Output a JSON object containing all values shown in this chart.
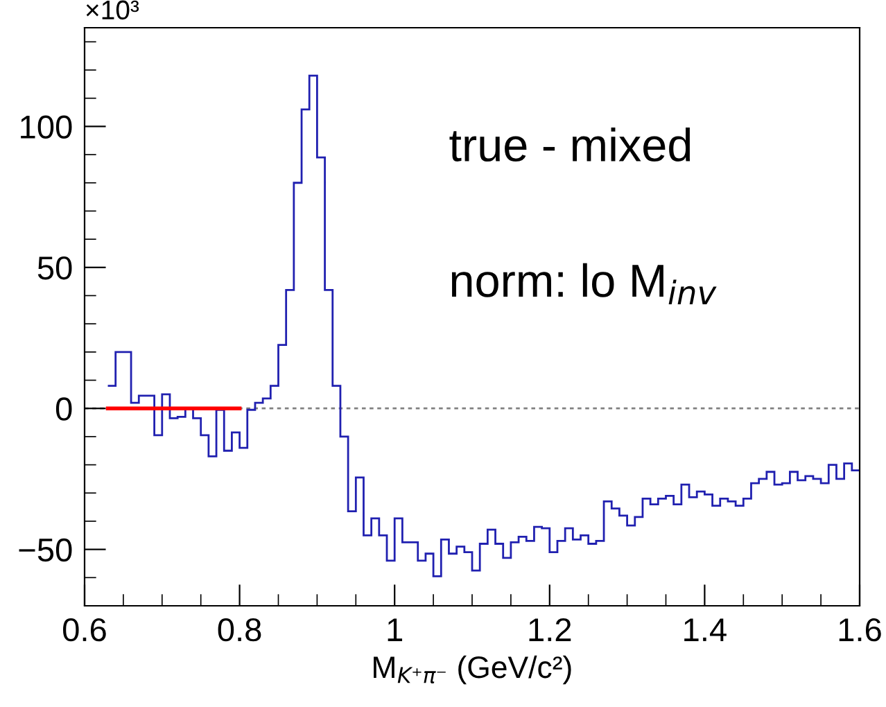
{
  "chart_data": {
    "type": "histogram",
    "xlabel": "M$_{K⁺π⁻}$ (GeV/c²)",
    "annotations": [
      "×10³",
      "true - mixed",
      "norm: lo M$_{inv}$"
    ],
    "xlim": [
      0.6,
      1.6
    ],
    "xticks": [
      0.6,
      0.8,
      {
        "value": 1.0,
        "label": "1"
      },
      1.2,
      1.4,
      1.6
    ],
    "ylim": [
      -70,
      135
    ],
    "yticks": [
      {
        "value": -50,
        "label": "−50"
      },
      0,
      50,
      100
    ],
    "ref_lines": [
      {
        "axis": "y",
        "value": 0,
        "color": "#808080",
        "line_style": "dotted"
      }
    ],
    "series": [
      {
        "color": "#2020b0",
        "bins": [
          0.63,
          0.64,
          0.65,
          0.66,
          0.67,
          0.68,
          0.69,
          0.7,
          0.71,
          0.72,
          0.73,
          0.74,
          0.75,
          0.76,
          0.77,
          0.78,
          0.79,
          0.8,
          0.81,
          0.82,
          0.83,
          0.84,
          0.85,
          0.86,
          0.87,
          0.88,
          0.89,
          0.9,
          0.91,
          0.92,
          0.93,
          0.94,
          0.95,
          0.96,
          0.97,
          0.98,
          0.99,
          1.0,
          1.01,
          1.02,
          1.03,
          1.04,
          1.05,
          1.06,
          1.07,
          1.08,
          1.09,
          1.1,
          1.11,
          1.12,
          1.13,
          1.14,
          1.15,
          1.16,
          1.17,
          1.18,
          1.19,
          1.2,
          1.21,
          1.22,
          1.23,
          1.24,
          1.25,
          1.26,
          1.27,
          1.28,
          1.29,
          1.3,
          1.31,
          1.32,
          1.33,
          1.34,
          1.35,
          1.36,
          1.37,
          1.38,
          1.39,
          1.4,
          1.41,
          1.42,
          1.43,
          1.44,
          1.45,
          1.46,
          1.47,
          1.48,
          1.49,
          1.5,
          1.51,
          1.52,
          1.53,
          1.54,
          1.55,
          1.56,
          1.57,
          1.58,
          1.59,
          1.6
        ],
        "values": [
          8,
          20,
          20,
          2,
          4.5,
          4.5,
          -9.5,
          5,
          -3.5,
          -3,
          0,
          -3.5,
          -9.5,
          -17,
          -0.5,
          -15,
          -8.5,
          -14,
          -0.5,
          2,
          3.5,
          8,
          22.5,
          42,
          80,
          106,
          118,
          89,
          42,
          8,
          -10,
          -36.5,
          -24.5,
          -45,
          -39,
          -45,
          -54,
          -39,
          -47.5,
          -47.5,
          -54,
          -51.5,
          -59.5,
          -46.5,
          -51.5,
          -49,
          -51,
          -57.5,
          -48,
          -43,
          -48,
          -53,
          -47.5,
          -45.5,
          -47,
          -42,
          -42.5,
          -51,
          -47,
          -42.5,
          -46.5,
          -45,
          -48,
          -47,
          -33,
          -35.5,
          -38,
          -41.5,
          -38.5,
          -32,
          -34,
          -32,
          -31,
          -34,
          -27,
          -31.5,
          -29.5,
          -30.5,
          -34.5,
          -32,
          -33,
          -34.5,
          -32,
          -26.5,
          -25,
          -22.5,
          -27,
          -26.5,
          -22.5,
          -25.5,
          -24,
          -25,
          -26.5,
          -20,
          -25,
          -19.5,
          -22
        ]
      },
      {
        "type": "line",
        "color": "#ff0000",
        "x": [
          0.63,
          0.8
        ],
        "values": [
          0,
          0
        ]
      }
    ]
  }
}
